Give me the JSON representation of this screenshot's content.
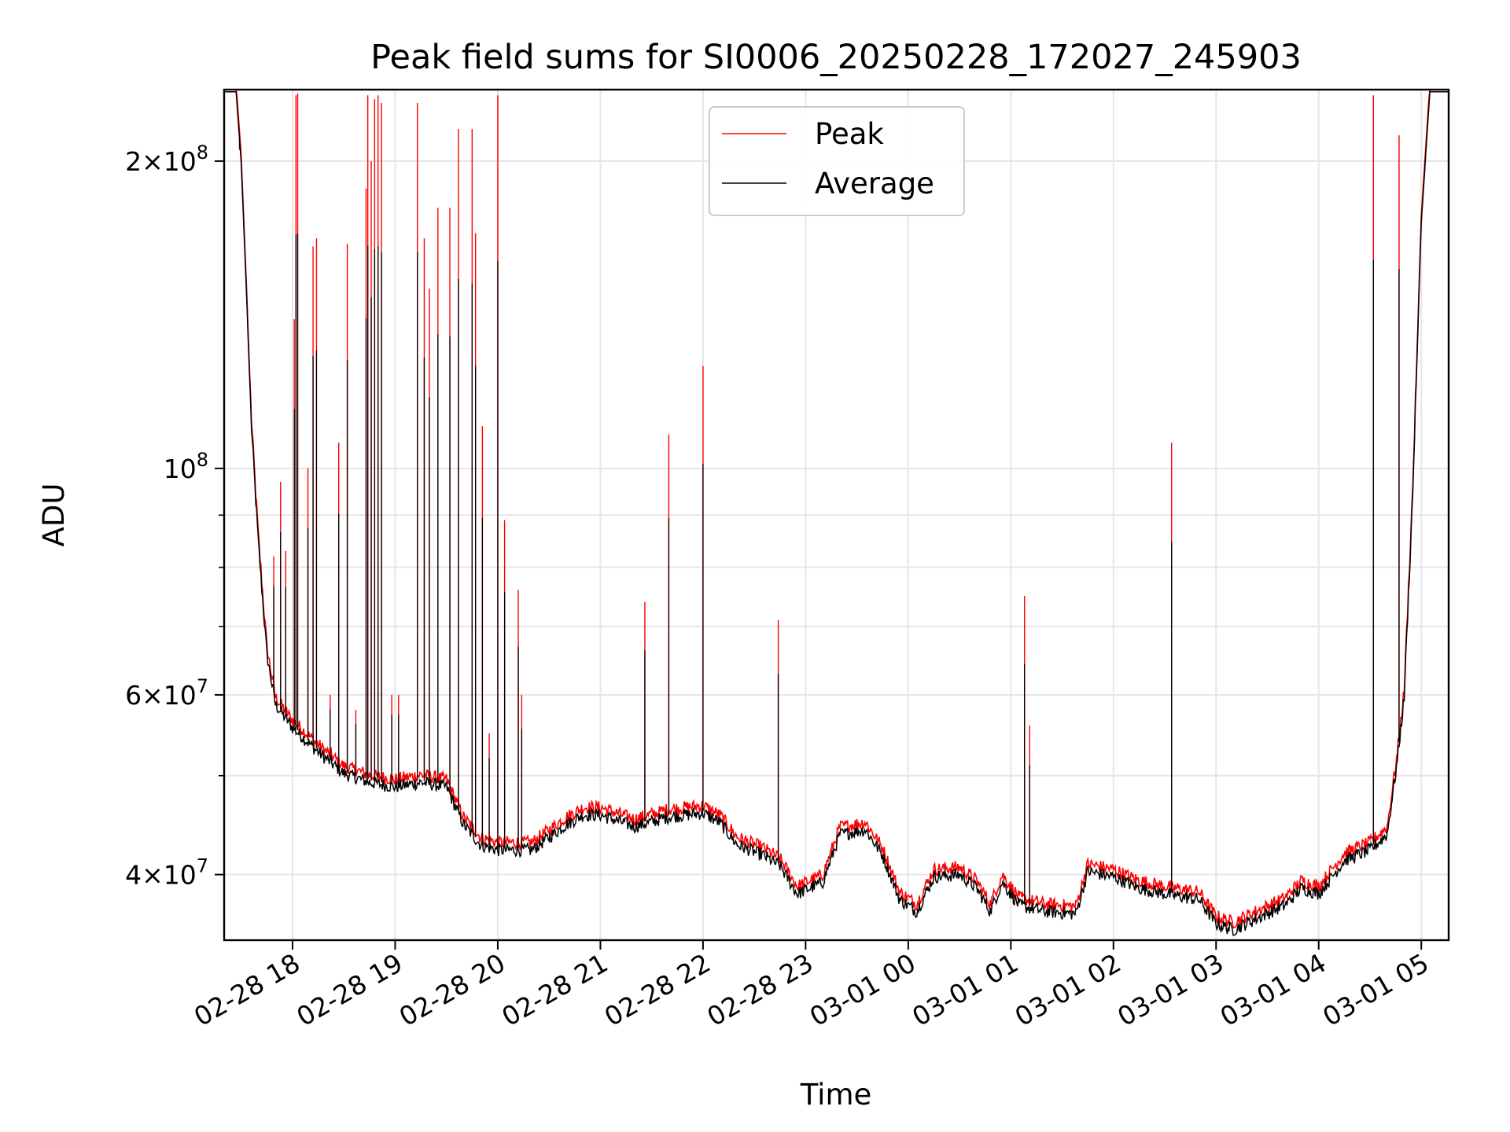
{
  "chart_data": {
    "type": "line",
    "title": "Peak field sums for SI0006_20250228_172027_245903",
    "xlabel": "Time",
    "ylabel": "ADU",
    "yscale": "log",
    "xlim": [
      "02-28 17:20",
      "03-01 05:16"
    ],
    "ylim": [
      34500000,
      235000000
    ],
    "grid": true,
    "legend_position": "top-center",
    "x_ticks": [
      "02-28 18",
      "02-28 19",
      "02-28 20",
      "02-28 21",
      "02-28 22",
      "02-28 23",
      "03-01 00",
      "03-01 01",
      "03-01 02",
      "03-01 03",
      "03-01 04",
      "03-01 05"
    ],
    "y_ticks": [
      {
        "value": 40000000,
        "mantissa": "4",
        "exponent": "7"
      },
      {
        "value": 60000000,
        "mantissa": "6",
        "exponent": "7"
      },
      {
        "value": 100000000,
        "mantissa": "",
        "exponent": "8"
      },
      {
        "value": 200000000,
        "mantissa": "2",
        "exponent": "8"
      }
    ],
    "minor_y_ticks": [
      50000000,
      70000000,
      80000000,
      90000000
    ],
    "series": [
      {
        "name": "Peak",
        "color": "#ff0000",
        "points": [
          [
            "02-28 17:20",
            235000000
          ],
          [
            "02-28 17:27",
            235000000
          ],
          [
            "02-28 17:30",
            200000000
          ],
          [
            "02-28 17:33",
            150000000
          ],
          [
            "02-28 17:36",
            110000000
          ],
          [
            "02-28 17:40",
            85000000
          ],
          [
            "02-28 17:45",
            66000000
          ],
          [
            "02-28 17:50",
            59000000
          ],
          [
            "02-28 18:00",
            56000000
          ],
          [
            "02-28 18:15",
            53000000
          ],
          [
            "02-28 18:30",
            50500000
          ],
          [
            "02-28 18:45",
            49500000
          ],
          [
            "02-28 19:00",
            49000000
          ],
          [
            "02-28 19:15",
            49500000
          ],
          [
            "02-28 19:30",
            49000000
          ],
          [
            "02-28 19:40",
            45000000
          ],
          [
            "02-28 19:50",
            43000000
          ],
          [
            "02-28 20:00",
            42500000
          ],
          [
            "02-28 20:20",
            42500000
          ],
          [
            "02-28 20:40",
            45000000
          ],
          [
            "02-28 20:50",
            46000000
          ],
          [
            "02-28 21:00",
            46000000
          ],
          [
            "02-28 21:20",
            44800000
          ],
          [
            "02-28 21:40",
            45800000
          ],
          [
            "02-28 22:00",
            46200000
          ],
          [
            "02-28 22:10",
            45200000
          ],
          [
            "02-28 22:20",
            43000000
          ],
          [
            "02-28 22:35",
            42000000
          ],
          [
            "02-28 22:45",
            41000000
          ],
          [
            "02-28 22:55",
            38500000
          ],
          [
            "02-28 23:10",
            39500000
          ],
          [
            "02-28 23:20",
            44000000
          ],
          [
            "02-28 23:35",
            44500000
          ],
          [
            "02-28 23:45",
            42000000
          ],
          [
            "02-28 23:55",
            38000000
          ],
          [
            "03-01 00:05",
            37000000
          ],
          [
            "03-01 00:15",
            40000000
          ],
          [
            "03-01 00:30",
            40200000
          ],
          [
            "03-01 00:40",
            39000000
          ],
          [
            "03-01 00:48",
            37000000
          ],
          [
            "03-01 00:55",
            39500000
          ],
          [
            "03-01 01:05",
            37500000
          ],
          [
            "03-01 01:20",
            37000000
          ],
          [
            "03-01 01:38",
            36800000
          ],
          [
            "03-01 01:45",
            40500000
          ],
          [
            "03-01 02:00",
            40000000
          ],
          [
            "03-01 02:15",
            39000000
          ],
          [
            "03-01 02:30",
            38500000
          ],
          [
            "03-01 02:50",
            38000000
          ],
          [
            "03-01 03:00",
            36000000
          ],
          [
            "03-01 03:10",
            35500000
          ],
          [
            "03-01 03:25",
            36500000
          ],
          [
            "03-01 03:40",
            37500000
          ],
          [
            "03-01 03:50",
            39000000
          ],
          [
            "03-01 04:00",
            38500000
          ],
          [
            "03-01 04:15",
            41500000
          ],
          [
            "03-01 04:30",
            42500000
          ],
          [
            "03-01 04:40",
            44000000
          ],
          [
            "03-01 04:46",
            52000000
          ],
          [
            "03-01 04:50",
            60000000
          ],
          [
            "03-01 04:55",
            95000000
          ],
          [
            "03-01 05:00",
            175000000
          ],
          [
            "03-01 05:05",
            235000000
          ],
          [
            "03-01 05:16",
            235000000
          ]
        ],
        "spikes": [
          [
            "02-28 17:29",
            205000000
          ],
          [
            "02-28 17:49",
            82000000
          ],
          [
            "02-28 17:53",
            97000000
          ],
          [
            "02-28 17:56",
            83000000
          ],
          [
            "02-28 18:01",
            140000000
          ],
          [
            "02-28 18:02",
            232000000
          ],
          [
            "02-28 18:03",
            233000000
          ],
          [
            "02-28 18:09",
            100000000
          ],
          [
            "02-28 18:12",
            165000000
          ],
          [
            "02-28 18:14",
            168000000
          ],
          [
            "02-28 18:22",
            60000000
          ],
          [
            "02-28 18:27",
            106000000
          ],
          [
            "02-28 18:32",
            166000000
          ],
          [
            "02-28 18:37",
            58000000
          ],
          [
            "02-28 18:43",
            188000000
          ],
          [
            "02-28 18:44",
            232000000
          ],
          [
            "02-28 18:46",
            200000000
          ],
          [
            "02-28 18:48",
            230000000
          ],
          [
            "02-28 18:50",
            232000000
          ],
          [
            "02-28 18:52",
            228000000
          ],
          [
            "02-28 18:58",
            60000000
          ],
          [
            "02-28 19:02",
            60000000
          ],
          [
            "02-28 19:13",
            228000000
          ],
          [
            "02-28 19:17",
            168000000
          ],
          [
            "02-28 19:20",
            150000000
          ],
          [
            "02-28 19:25",
            180000000
          ],
          [
            "02-28 19:32",
            180000000
          ],
          [
            "02-28 19:37",
            215000000
          ],
          [
            "02-28 19:45",
            215000000
          ],
          [
            "02-28 19:47",
            170000000
          ],
          [
            "02-28 19:51",
            110000000
          ],
          [
            "02-28 19:55",
            55000000
          ],
          [
            "02-28 20:00",
            232000000
          ],
          [
            "02-28 20:04",
            89000000
          ],
          [
            "02-28 20:12",
            76000000
          ],
          [
            "02-28 20:14",
            60000000
          ],
          [
            "02-28 21:26",
            74000000
          ],
          [
            "02-28 21:40",
            108000000
          ],
          [
            "02-28 22:00",
            126000000
          ],
          [
            "02-28 22:44",
            71000000
          ],
          [
            "03-01 01:08",
            75000000
          ],
          [
            "03-01 01:11",
            56000000
          ],
          [
            "03-01 02:34",
            106000000
          ],
          [
            "03-01 04:32",
            232000000
          ],
          [
            "03-01 04:47",
            212000000
          ]
        ]
      },
      {
        "name": "Average",
        "color": "#000000",
        "spike_scale": 0.78
      }
    ]
  }
}
